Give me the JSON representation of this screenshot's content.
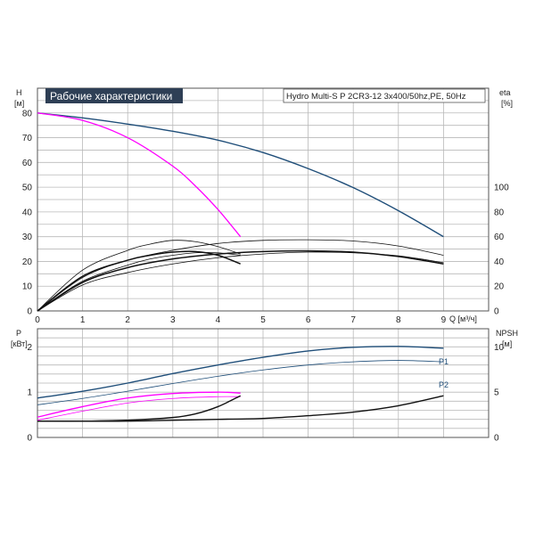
{
  "chart_data": [
    {
      "type": "line",
      "title": "Рабочие характеристики",
      "subtitle": "Hydro Multi-S P 2CR3-12 3x400/50hz,PE, 50Hz",
      "ylabel": "H",
      "yunit": "[м]",
      "y2label": "eta",
      "y2unit": "[%]",
      "xlabel": "Q [м³/ч]",
      "xlim": [
        0,
        9
      ],
      "ylim": [
        0,
        90
      ],
      "y2lim": [
        0,
        180
      ],
      "xticks": [
        "0",
        "1",
        "2",
        "3",
        "4",
        "5",
        "6",
        "7",
        "8",
        "9"
      ],
      "yticks": [
        "0",
        "10",
        "20",
        "30",
        "40",
        "50",
        "60",
        "70",
        "80"
      ],
      "y2ticks": [
        "0",
        "20",
        "40",
        "60",
        "80",
        "100"
      ],
      "grid": true,
      "series": [
        {
          "name": "",
          "color": "#1f4e79",
          "width": 1.4,
          "axis": "left",
          "x": [
            0,
            1,
            2,
            3,
            4,
            5,
            6,
            7,
            8,
            9
          ],
          "y": [
            80,
            78,
            75.5,
            72.6,
            69,
            64,
            57.5,
            49.8,
            40.5,
            30
          ]
        },
        {
          "name": "",
          "color": "#ff00ff",
          "width": 1.3,
          "axis": "left",
          "x": [
            0,
            1,
            2,
            3,
            3.5,
            4,
            4.5
          ],
          "y": [
            80,
            77,
            70,
            58.5,
            50.5,
            41,
            30
          ]
        },
        {
          "name": "",
          "color": "#111111",
          "width": 1.5,
          "axis": "right",
          "x": [
            0,
            1,
            2,
            3,
            4,
            5,
            6,
            7,
            8,
            9
          ],
          "y": [
            0,
            23,
            35,
            42,
            46,
            48,
            48.5,
            47.5,
            44,
            38
          ]
        },
        {
          "name": "",
          "color": "#111111",
          "width": 0.8,
          "axis": "right",
          "x": [
            0,
            1,
            2,
            3,
            4,
            5,
            6,
            7,
            8,
            9
          ],
          "y": [
            0,
            27,
            41,
            49,
            54.5,
            57,
            57.5,
            56.5,
            52.5,
            45
          ]
        },
        {
          "name": "",
          "color": "#111111",
          "width": 0.8,
          "axis": "right",
          "x": [
            0,
            1,
            2,
            3,
            4,
            5,
            6,
            7,
            8,
            9
          ],
          "y": [
            0,
            21,
            31,
            38,
            43,
            46,
            47.5,
            47,
            44.5,
            39
          ]
        },
        {
          "name": "",
          "color": "#111111",
          "width": 1.5,
          "axis": "right",
          "x": [
            0,
            1,
            2,
            2.5,
            3,
            3.5,
            4,
            4.5
          ],
          "y": [
            0,
            28,
            41,
            45,
            47.5,
            48,
            45,
            38
          ]
        },
        {
          "name": "",
          "color": "#111111",
          "width": 0.8,
          "axis": "right",
          "x": [
            0,
            1,
            2,
            2.5,
            3,
            3.5,
            4,
            4.5
          ],
          "y": [
            0,
            33,
            49,
            54,
            57,
            56,
            52,
            46
          ]
        },
        {
          "name": "",
          "color": "#111111",
          "width": 0.8,
          "axis": "right",
          "x": [
            0,
            1,
            2,
            2.5,
            3,
            3.5,
            4,
            4.5
          ],
          "y": [
            0,
            24,
            37,
            42,
            45,
            47,
            47,
            45
          ]
        }
      ]
    },
    {
      "type": "line",
      "ylabel": "P",
      "yunit": "[кВт]",
      "y2label": "NPSH",
      "y2unit": "[м]",
      "xlim": [
        0,
        9
      ],
      "ylim": [
        0,
        2.4
      ],
      "y2lim": [
        0,
        12
      ],
      "yticks": [
        "0",
        "1",
        "2"
      ],
      "y2ticks": [
        "0",
        "5",
        "10"
      ],
      "grid": true,
      "annotations": [
        "P1",
        "P2"
      ],
      "series": [
        {
          "name": "P1",
          "color": "#1f4e79",
          "width": 1.4,
          "axis": "left",
          "x": [
            0,
            1,
            2,
            3,
            4,
            5,
            6,
            7,
            8,
            9
          ],
          "y": [
            0.87,
            1.02,
            1.2,
            1.41,
            1.6,
            1.77,
            1.91,
            1.99,
            2.01,
            1.97
          ]
        },
        {
          "name": "P2",
          "color": "#1f4e79",
          "width": 0.8,
          "axis": "left",
          "x": [
            0,
            1,
            2,
            3,
            4,
            5,
            6,
            7,
            8,
            9
          ],
          "y": [
            0.72,
            0.86,
            1.02,
            1.19,
            1.35,
            1.49,
            1.6,
            1.67,
            1.7,
            1.67
          ]
        },
        {
          "name": "",
          "color": "#ff00ff",
          "width": 1.3,
          "axis": "left",
          "x": [
            0,
            1,
            2,
            3,
            4,
            4.5
          ],
          "y": [
            0.45,
            0.68,
            0.87,
            0.97,
            1.0,
            0.98
          ]
        },
        {
          "name": "",
          "color": "#ff00ff",
          "width": 0.8,
          "axis": "left",
          "x": [
            0,
            1,
            2,
            3,
            4,
            4.5
          ],
          "y": [
            0.38,
            0.58,
            0.76,
            0.86,
            0.9,
            0.9
          ]
        },
        {
          "name": "",
          "color": "#111111",
          "width": 1.4,
          "axis": "right",
          "x": [
            0,
            1,
            2,
            3,
            4,
            5,
            6,
            7,
            8,
            9
          ],
          "y": [
            1.8,
            1.8,
            1.8,
            1.9,
            2.0,
            2.1,
            2.4,
            2.8,
            3.5,
            4.6
          ]
        },
        {
          "name": "",
          "color": "#111111",
          "width": 1.4,
          "axis": "right",
          "x": [
            0,
            1,
            2,
            3,
            3.5,
            4,
            4.5
          ],
          "y": [
            1.8,
            1.8,
            1.9,
            2.2,
            2.6,
            3.4,
            4.6
          ]
        }
      ]
    }
  ]
}
